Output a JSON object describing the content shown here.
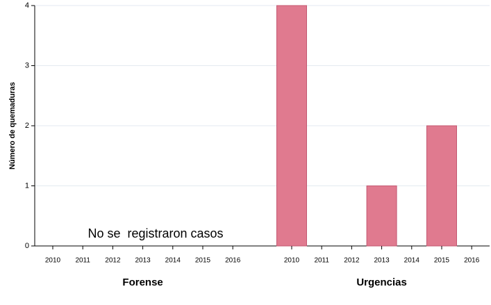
{
  "chart_data": {
    "type": "bar",
    "ylabel": "Número de quemaduras",
    "ylim": [
      0,
      4
    ],
    "yticks": [
      0,
      1,
      2,
      3,
      4
    ],
    "grid": true,
    "color": "#e07a8f",
    "edgecolor": "#c45872",
    "groups": [
      {
        "name": "Forense",
        "categories": [
          "2010",
          "2011",
          "2012",
          "2013",
          "2014",
          "2015",
          "2016"
        ],
        "values": [
          0,
          0,
          0,
          0,
          0,
          0,
          0
        ],
        "annotation": "No se  registraron casos"
      },
      {
        "name": "Urgencias",
        "categories": [
          "2010",
          "2011",
          "2012",
          "2013",
          "2014",
          "2015",
          "2016"
        ],
        "values": [
          4,
          0,
          0,
          1,
          0,
          2,
          0
        ]
      }
    ]
  }
}
